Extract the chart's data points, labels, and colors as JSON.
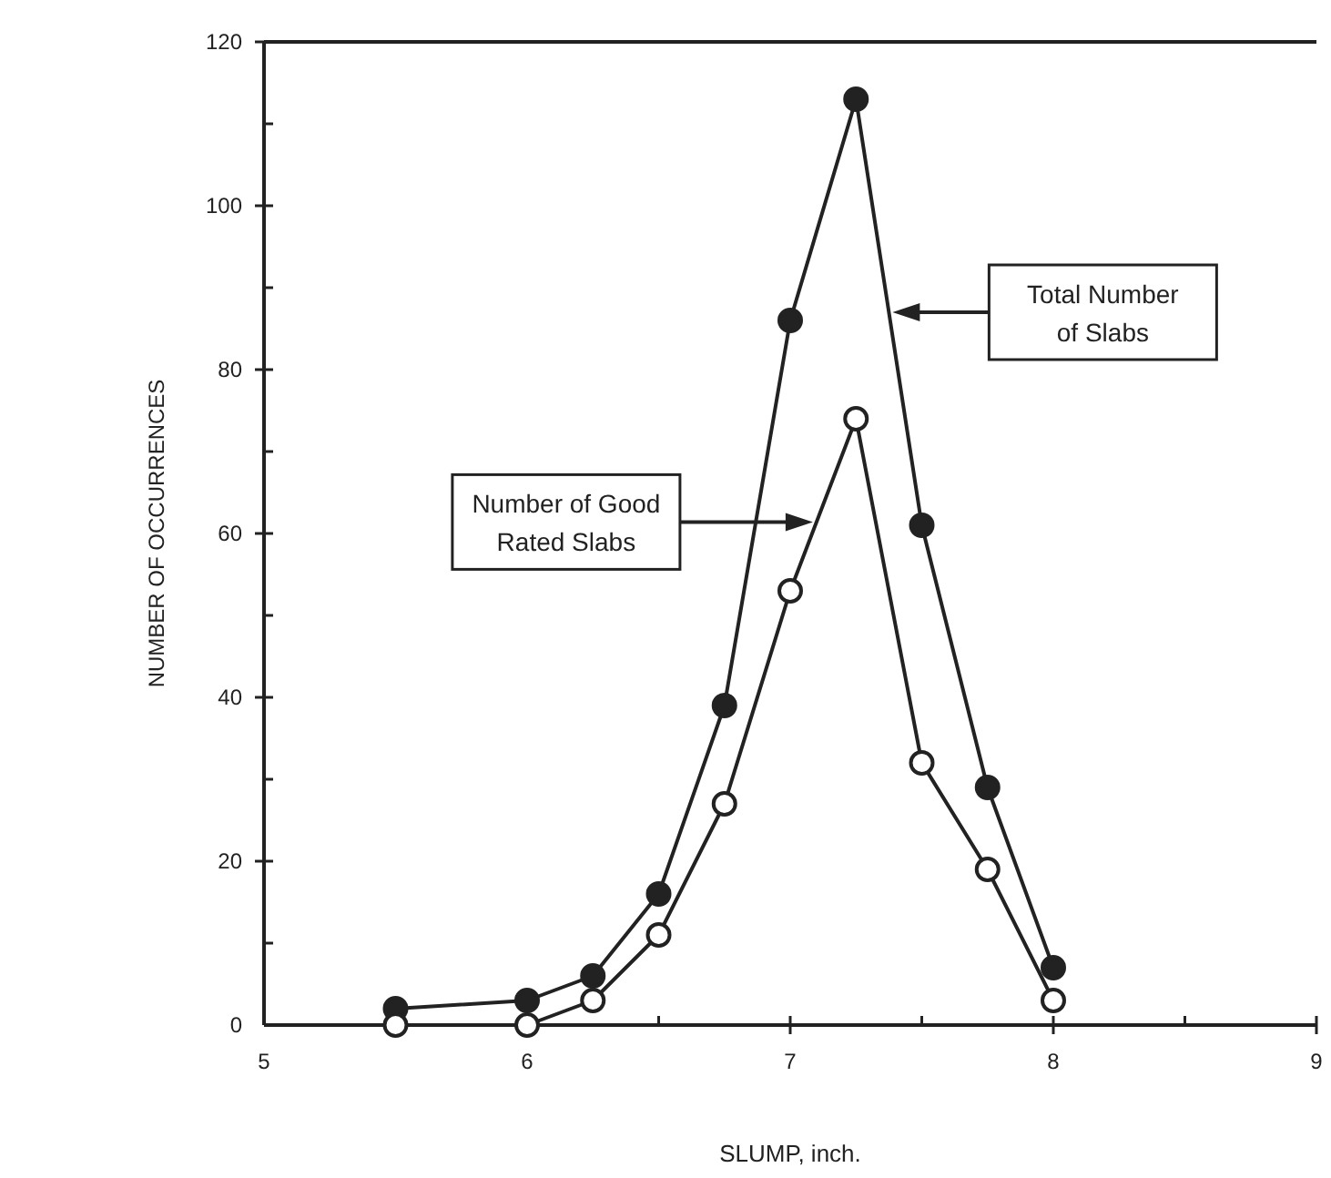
{
  "chart_data": {
    "type": "line",
    "xlabel": "SLUMP, inch.",
    "ylabel": "NUMBER OF OCCURRENCES",
    "xlim": [
      5,
      9
    ],
    "xticks": [
      5,
      {
        "value": 5.5,
        "label": null
      },
      6,
      {
        "value": 6.5,
        "label": null
      },
      7,
      {
        "value": 7.5,
        "label": null
      },
      8,
      {
        "value": 8.5,
        "label": null
      },
      9
    ],
    "ylim": [
      0,
      120
    ],
    "yticks": [
      0,
      {
        "value": 10,
        "label": null
      },
      20,
      {
        "value": 30,
        "label": null
      },
      40,
      {
        "value": 50,
        "label": null
      },
      60,
      {
        "value": 70,
        "label": null
      },
      80,
      {
        "value": 90,
        "label": null
      },
      100,
      {
        "value": 110,
        "label": null
      },
      120
    ],
    "x": [
      5.5,
      6,
      6.25,
      6.5,
      6.75,
      7,
      7.25,
      7.5,
      7.75,
      8
    ],
    "marker": "circle",
    "series": [
      {
        "color": "#222222",
        "values": [
          2,
          3,
          6,
          16,
          39,
          86,
          113,
          61,
          29,
          7
        ]
      },
      {
        "color": "#ffffff",
        "values": [
          0,
          0,
          3,
          11,
          27,
          53,
          74,
          32,
          19,
          3
        ]
      }
    ],
    "annotations": [
      "Total Number of Slabs",
      "Number of Good Rated Slabs"
    ]
  }
}
